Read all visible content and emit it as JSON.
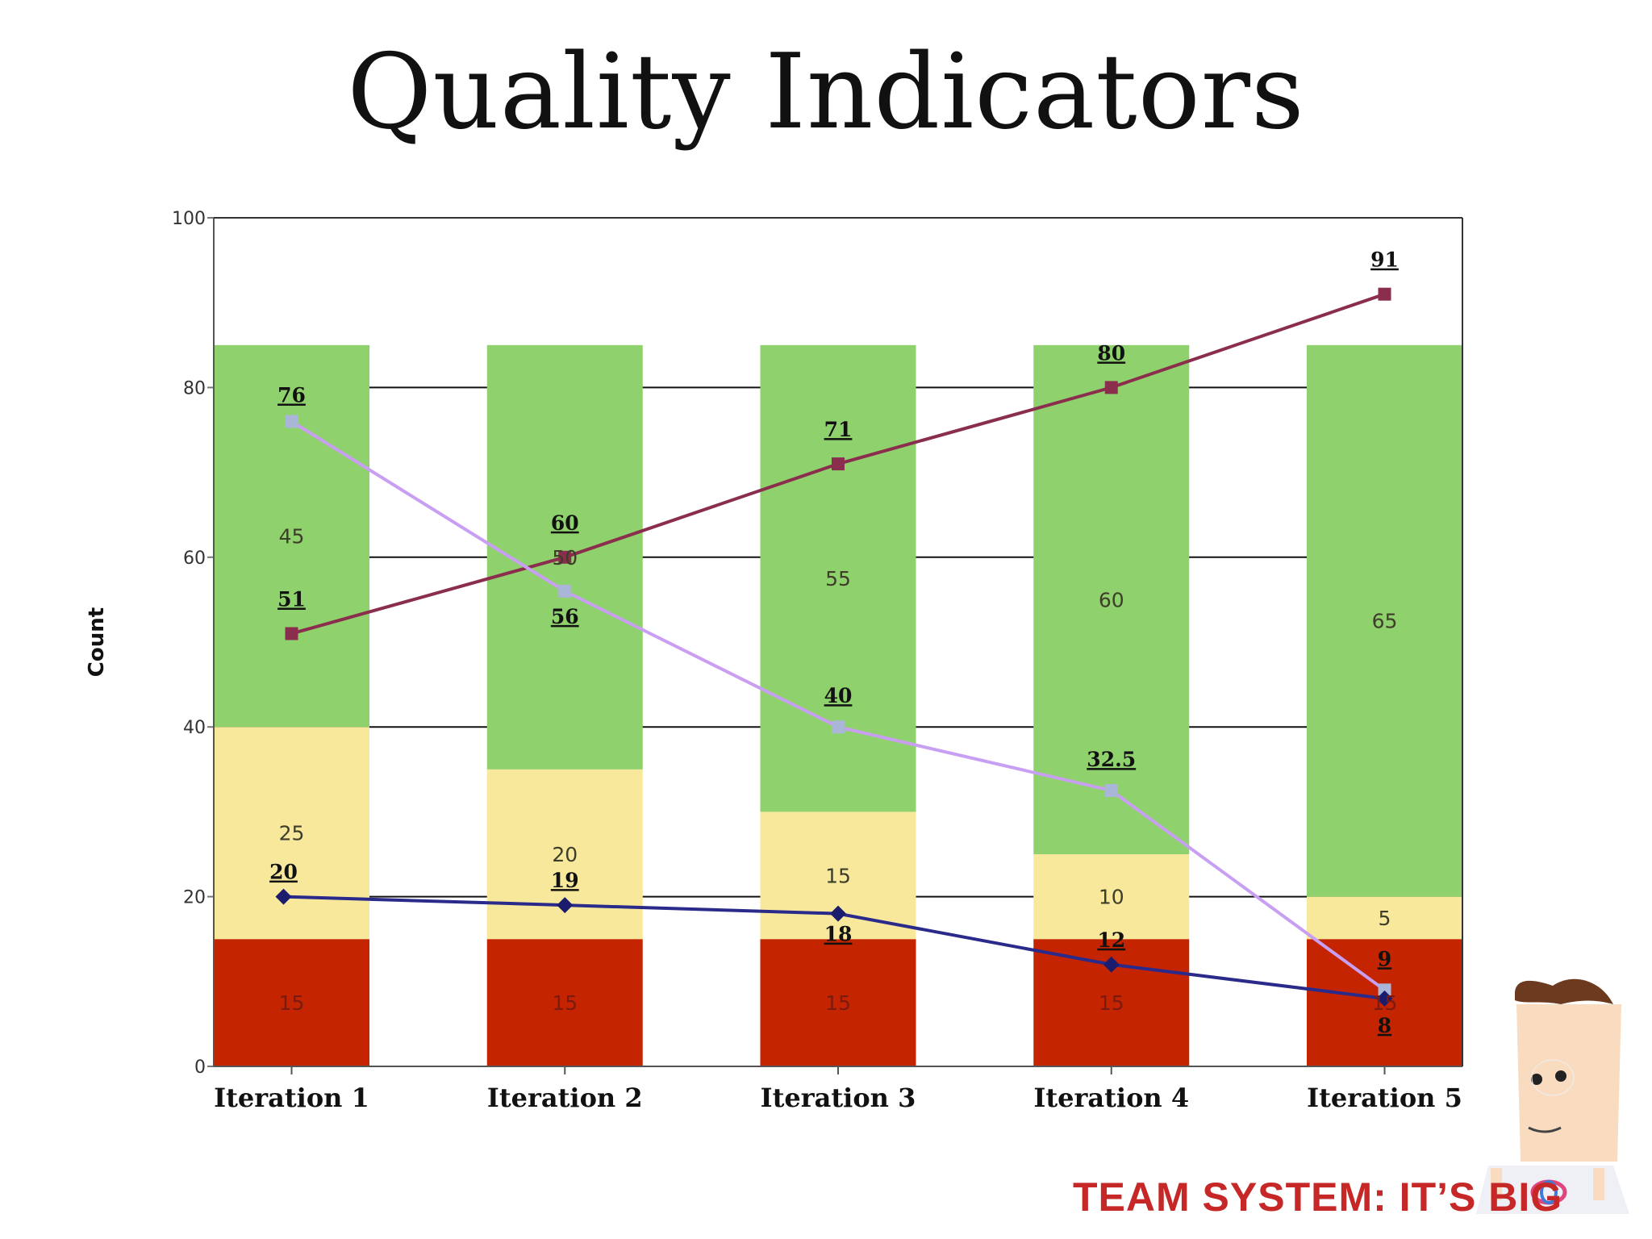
{
  "slide": {
    "title": "Quality Indicators",
    "footer_logo_text": "TEAM SYSTEM: IT’S BIG"
  },
  "colors": {
    "red": "#c42500",
    "yellow": "#f8e89c",
    "green": "#8fd16c",
    "maroon_line": "#8b2d4d",
    "lavender_line": "#c89ff2",
    "navy_line": "#2a2a8a",
    "lavender_marker": "#a9b6d8"
  },
  "chart_data": {
    "type": "bar",
    "ylabel": "Count",
    "xlabel": "",
    "ylim": [
      0,
      100
    ],
    "yticks": [
      "0",
      "20",
      "40",
      "60",
      "80",
      "100"
    ],
    "grid": true,
    "categories": [
      "Iteration 1",
      "Iteration 2",
      "Iteration 3",
      "Iteration 4",
      "Iteration 5"
    ],
    "stacked_series": [
      {
        "color": "red",
        "values": [
          15,
          15,
          15,
          15,
          15
        ],
        "labels": [
          "15",
          "15",
          "15",
          "15",
          "15"
        ]
      },
      {
        "color": "yellow",
        "values": [
          25,
          20,
          15,
          10,
          5
        ],
        "labels": [
          "25",
          "20",
          "15",
          "10",
          "5"
        ]
      },
      {
        "color": "green",
        "values": [
          45,
          50,
          55,
          60,
          65
        ],
        "labels": [
          "45",
          "50",
          "55",
          "60",
          "65"
        ]
      }
    ],
    "line_series": [
      {
        "color": "maroon_line",
        "marker": "square",
        "values": [
          51,
          60,
          71,
          80,
          91
        ],
        "labels": [
          "51",
          "60",
          "71",
          "80",
          "91"
        ]
      },
      {
        "color": "lavender_line",
        "marker": "square",
        "values": [
          76,
          56,
          40,
          32.5,
          9
        ],
        "labels": [
          "76",
          "56",
          "40",
          "32.5",
          "9"
        ]
      },
      {
        "color": "navy_line",
        "marker": "diamond",
        "values": [
          20,
          19,
          18,
          12,
          8
        ],
        "labels": [
          "20",
          "19",
          "18",
          "12",
          "8"
        ]
      }
    ]
  }
}
